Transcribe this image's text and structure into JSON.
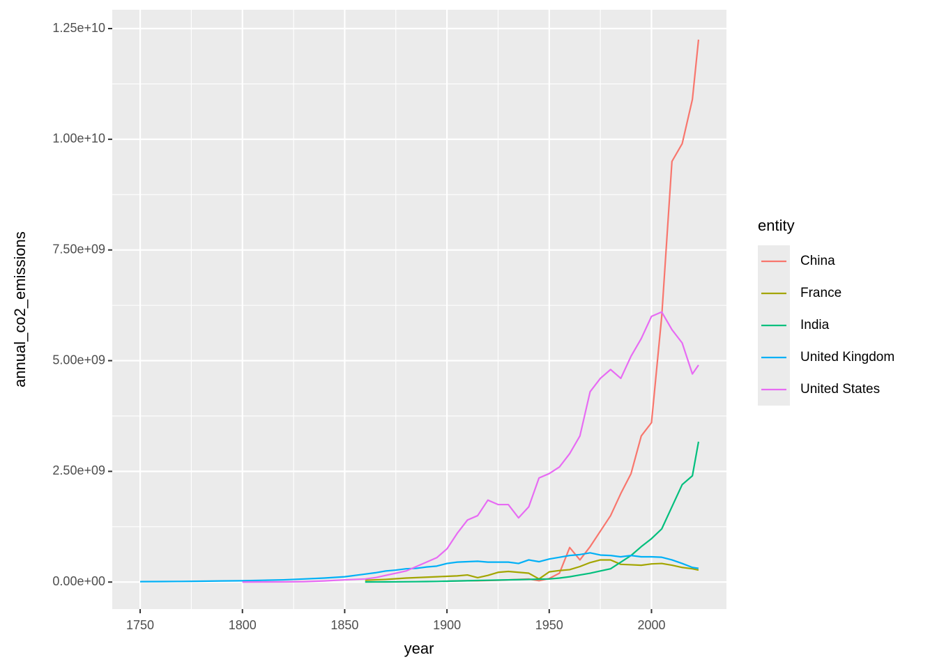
{
  "chart_data": {
    "type": "line",
    "x_label": "year",
    "y_label": "annual_co2_emissions",
    "legend_title": "entity",
    "x": [
      1750,
      1760,
      1770,
      1780,
      1790,
      1800,
      1810,
      1820,
      1830,
      1840,
      1850,
      1855,
      1860,
      1865,
      1870,
      1875,
      1880,
      1885,
      1890,
      1895,
      1900,
      1905,
      1910,
      1915,
      1920,
      1925,
      1930,
      1935,
      1940,
      1945,
      1950,
      1955,
      1960,
      1965,
      1970,
      1975,
      1980,
      1985,
      1990,
      1995,
      2000,
      2005,
      2010,
      2015,
      2020,
      2023
    ],
    "series": [
      {
        "name": "China",
        "color": "#F8766D",
        "values": [
          null,
          null,
          null,
          null,
          null,
          null,
          null,
          null,
          null,
          null,
          null,
          null,
          null,
          null,
          null,
          null,
          null,
          null,
          null,
          null,
          20000000.0,
          25000000.0,
          30000000.0,
          30000000.0,
          35000000.0,
          40000000.0,
          50000000.0,
          60000000.0,
          70000000.0,
          30000000.0,
          80000000.0,
          200000000.0,
          780000000.0,
          500000000.0,
          800000000.0,
          1150000000.0,
          1500000000.0,
          2000000000.0,
          2450000000.0,
          3300000000.0,
          3600000000.0,
          6000000000.0,
          9500000000.0,
          9900000000.0,
          10900000000.0,
          12250000000.0
        ]
      },
      {
        "name": "France",
        "color": "#A3A500",
        "values": [
          null,
          null,
          null,
          null,
          null,
          null,
          null,
          null,
          null,
          null,
          null,
          null,
          40000000.0,
          50000000.0,
          60000000.0,
          75000000.0,
          90000000.0,
          100000000.0,
          110000000.0,
          120000000.0,
          130000000.0,
          140000000.0,
          160000000.0,
          100000000.0,
          150000000.0,
          220000000.0,
          240000000.0,
          220000000.0,
          200000000.0,
          70000000.0,
          230000000.0,
          260000000.0,
          280000000.0,
          350000000.0,
          440000000.0,
          500000000.0,
          500000000.0,
          400000000.0,
          390000000.0,
          380000000.0,
          410000000.0,
          420000000.0,
          380000000.0,
          330000000.0,
          300000000.0,
          270000000.0
        ]
      },
      {
        "name": "India",
        "color": "#00BF7D",
        "values": [
          null,
          null,
          null,
          null,
          null,
          null,
          null,
          null,
          null,
          null,
          null,
          null,
          2000000.0,
          3000000.0,
          4000000.0,
          5000000.0,
          7000000.0,
          9000000.0,
          12000000.0,
          15000000.0,
          20000000.0,
          25000000.0,
          30000000.0,
          35000000.0,
          40000000.0,
          45000000.0,
          50000000.0,
          55000000.0,
          60000000.0,
          65000000.0,
          70000000.0,
          90000000.0,
          120000000.0,
          160000000.0,
          200000000.0,
          250000000.0,
          300000000.0,
          450000000.0,
          600000000.0,
          800000000.0,
          980000000.0,
          1200000000.0,
          1700000000.0,
          2200000000.0,
          2400000000.0,
          3170000000.0
        ]
      },
      {
        "name": "United Kingdom",
        "color": "#00B0F6",
        "values": [
          10000000.0,
          12000000.0,
          15000000.0,
          20000000.0,
          25000000.0,
          30000000.0,
          40000000.0,
          50000000.0,
          70000000.0,
          90000000.0,
          120000000.0,
          150000000.0,
          180000000.0,
          210000000.0,
          250000000.0,
          270000000.0,
          300000000.0,
          310000000.0,
          340000000.0,
          360000000.0,
          420000000.0,
          450000000.0,
          460000000.0,
          470000000.0,
          450000000.0,
          450000000.0,
          450000000.0,
          420000000.0,
          500000000.0,
          460000000.0,
          520000000.0,
          560000000.0,
          600000000.0,
          620000000.0,
          660000000.0,
          610000000.0,
          600000000.0,
          570000000.0,
          600000000.0,
          570000000.0,
          570000000.0,
          560000000.0,
          500000000.0,
          420000000.0,
          330000000.0,
          310000000.0
        ]
      },
      {
        "name": "United States",
        "color": "#E76BF3",
        "values": [
          null,
          null,
          null,
          null,
          null,
          300000.0,
          2000000.0,
          4000000.0,
          10000000.0,
          25000000.0,
          50000000.0,
          60000000.0,
          70000000.0,
          100000000.0,
          150000000.0,
          200000000.0,
          250000000.0,
          350000000.0,
          450000000.0,
          550000000.0,
          750000000.0,
          1100000000.0,
          1400000000.0,
          1500000000.0,
          1850000000.0,
          1750000000.0,
          1750000000.0,
          1450000000.0,
          1700000000.0,
          2350000000.0,
          2450000000.0,
          2600000000.0,
          2900000000.0,
          3300000000.0,
          4300000000.0,
          4600000000.0,
          4800000000.0,
          4600000000.0,
          5100000000.0,
          5500000000.0,
          6000000000.0,
          6100000000.0,
          5700000000.0,
          5400000000.0,
          4700000000.0,
          4900000000.0
        ]
      }
    ],
    "xlim": [
      1736.35,
      2036.65
    ],
    "xticks": [
      1750,
      1800,
      1850,
      1900,
      1950,
      2000
    ],
    "ylim": [
      -610000000.0,
      12925000000.0
    ],
    "yticks": [
      {
        "value": 0,
        "label": "0.00e+00"
      },
      {
        "value": 2500000000.0,
        "label": "2.50e+09"
      },
      {
        "value": 5000000000.0,
        "label": "5.00e+09"
      },
      {
        "value": 7500000000.0,
        "label": "7.50e+09"
      },
      {
        "value": 10000000000.0,
        "label": "1.00e+10"
      },
      {
        "value": 12500000000.0,
        "label": "1.25e+10"
      }
    ],
    "grid": true,
    "legend": "right"
  }
}
